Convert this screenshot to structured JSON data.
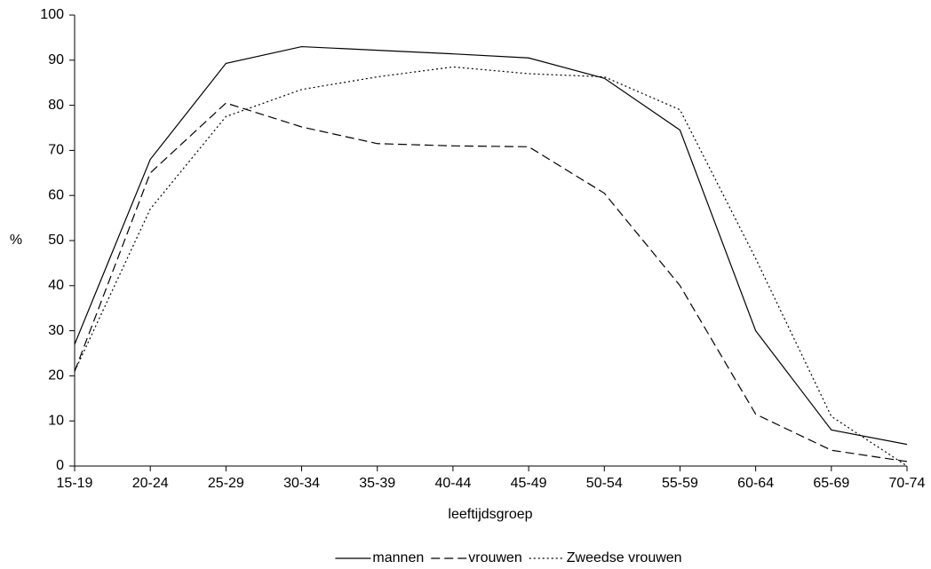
{
  "chart_data": {
    "type": "line",
    "x_label": "leeftijdsgroep",
    "y_label": "%",
    "categories": [
      "15-19",
      "20-24",
      "25-29",
      "30-34",
      "35-39",
      "40-44",
      "45-49",
      "50-54",
      "55-59",
      "60-64",
      "65-69",
      "70-74"
    ],
    "series": [
      {
        "name": "mannen",
        "color": "#000000",
        "dash": "solid",
        "values": [
          27,
          68,
          89.3,
          93,
          92.2,
          91.4,
          90.5,
          86,
          74.5,
          30,
          8,
          4.8
        ]
      },
      {
        "name": "vrouwen",
        "color": "#000000",
        "dash": "dashed",
        "values": [
          21,
          65,
          80.5,
          75.2,
          71.5,
          71,
          70.8,
          60.5,
          40,
          11.5,
          3.5,
          1
        ]
      },
      {
        "name": "Zweedse vrouwen",
        "color": "#000000",
        "dash": "dotted",
        "values": [
          21,
          57,
          77.5,
          83.5,
          86.3,
          88.5,
          87,
          86.3,
          79,
          46,
          11,
          0
        ]
      }
    ],
    "ylim": [
      0,
      100
    ],
    "yticks": [
      0,
      10,
      20,
      30,
      40,
      50,
      60,
      70,
      80,
      90,
      100
    ],
    "legend": "bottom",
    "grid": false
  }
}
